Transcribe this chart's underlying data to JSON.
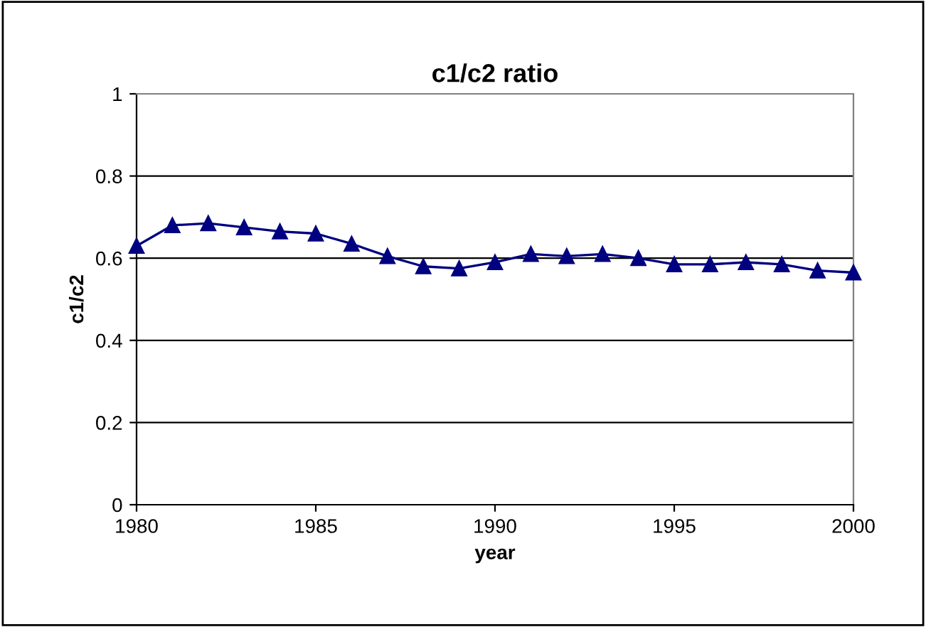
{
  "chart_data": {
    "type": "line",
    "title": "c1/c2 ratio",
    "xlabel": "year",
    "ylabel": "c1/c2",
    "x": [
      1980,
      1981,
      1982,
      1983,
      1984,
      1985,
      1986,
      1987,
      1988,
      1989,
      1990,
      1991,
      1992,
      1993,
      1994,
      1995,
      1996,
      1997,
      1998,
      1999,
      2000
    ],
    "series": [
      {
        "color": "#000080",
        "values": [
          0.63,
          0.68,
          0.685,
          0.675,
          0.665,
          0.66,
          0.635,
          0.605,
          0.58,
          0.575,
          0.59,
          0.61,
          0.605,
          0.61,
          0.6,
          0.585,
          0.585,
          0.59,
          0.585,
          0.57,
          0.565
        ]
      }
    ],
    "xlim": [
      1980,
      2000
    ],
    "xticks": [
      1980,
      1985,
      1990,
      1995,
      2000
    ],
    "ylim": [
      0,
      1
    ],
    "yticks": [
      0,
      0.2,
      0.4,
      0.6,
      0.8,
      1
    ],
    "grid": "y",
    "marker": "triangle",
    "line_style": "solid",
    "legend": false
  }
}
